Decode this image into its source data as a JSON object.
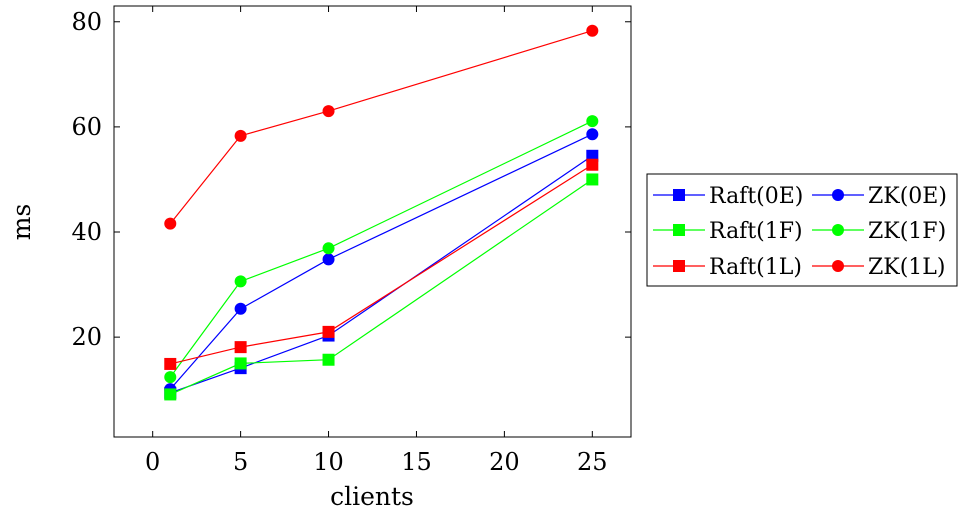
{
  "chart_data": {
    "type": "line",
    "title": "",
    "xlabel": "clients",
    "ylabel": "ms",
    "xlim": [
      -2.2,
      27.2
    ],
    "ylim": [
      1,
      83
    ],
    "xticks": [
      0,
      5,
      10,
      15,
      20,
      25
    ],
    "yticks": [
      20,
      40,
      60,
      80
    ],
    "grid": false,
    "legend_position": "right",
    "legend_columns": 2,
    "series": [
      {
        "name": "Raft(0E)",
        "color": "#0000ff",
        "marker": "square",
        "x": [
          1,
          5,
          10,
          25
        ],
        "y": [
          9.4,
          14.1,
          20.3,
          54.5
        ]
      },
      {
        "name": "ZK(0E)",
        "color": "#0000ff",
        "marker": "circle",
        "x": [
          1,
          5,
          10,
          25
        ],
        "y": [
          10.1,
          25.4,
          34.8,
          58.6
        ]
      },
      {
        "name": "Raft(1F)",
        "color": "#00ff00",
        "marker": "square",
        "x": [
          1,
          5,
          10,
          25
        ],
        "y": [
          9.1,
          15.0,
          15.7,
          50.0
        ]
      },
      {
        "name": "ZK(1F)",
        "color": "#00ff00",
        "marker": "circle",
        "x": [
          1,
          5,
          10,
          25
        ],
        "y": [
          12.4,
          30.6,
          36.9,
          61.1
        ]
      },
      {
        "name": "Raft(1L)",
        "color": "#ff0000",
        "marker": "square",
        "x": [
          1,
          5,
          10,
          25
        ],
        "y": [
          14.9,
          18.1,
          21.0,
          52.8
        ]
      },
      {
        "name": "ZK(1L)",
        "color": "#ff0000",
        "marker": "circle",
        "x": [
          1,
          5,
          10,
          25
        ],
        "y": [
          41.6,
          58.3,
          63.0,
          78.3
        ]
      }
    ]
  }
}
